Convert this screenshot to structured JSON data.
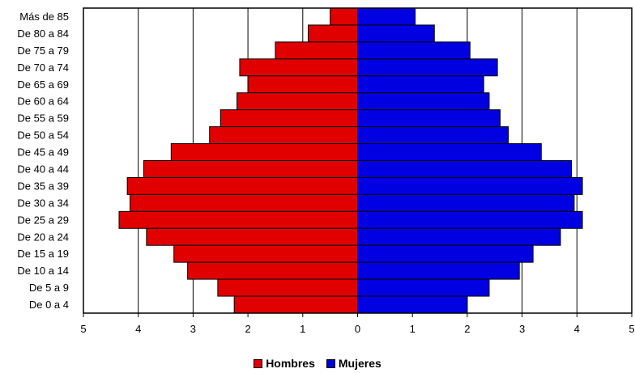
{
  "chart_data": {
    "type": "bar",
    "orientation": "horizontal",
    "layout": "population-pyramid",
    "categories": [
      "Más de 85",
      "De 80 a 84",
      "De 75 a 79",
      "De 70 a 74",
      "De 65 a 69",
      "De 60 a 64",
      "De 55 a 59",
      "De 50 a 54",
      "De 45 a 49",
      "De 40 a 44",
      "De 35 a 39",
      "De 30 a 34",
      "De 25 a 29",
      "De 20 a 24",
      "De 15 a 19",
      "De 10 a 14",
      "De 5 a 9",
      "De 0 a 4"
    ],
    "series": [
      {
        "name": "Hombres",
        "color": "#e00000",
        "side": "left",
        "values": [
          0.5,
          0.9,
          1.5,
          2.15,
          2.0,
          2.2,
          2.5,
          2.7,
          3.4,
          3.9,
          4.2,
          4.15,
          4.35,
          3.85,
          3.35,
          3.1,
          2.55,
          2.25
        ]
      },
      {
        "name": "Mujeres",
        "color": "#0000e0",
        "side": "right",
        "values": [
          1.05,
          1.4,
          2.05,
          2.55,
          2.3,
          2.4,
          2.6,
          2.75,
          3.35,
          3.9,
          4.1,
          3.95,
          4.1,
          3.7,
          3.2,
          2.95,
          2.4,
          2.0
        ]
      }
    ],
    "xticks": [
      "5",
      "4",
      "3",
      "2",
      "1",
      "0",
      "1",
      "2",
      "3",
      "4",
      "5"
    ],
    "xlim": [
      -5,
      5
    ],
    "grid": true,
    "legend": "bottom-center",
    "title": "",
    "xlabel": "",
    "ylabel": ""
  }
}
